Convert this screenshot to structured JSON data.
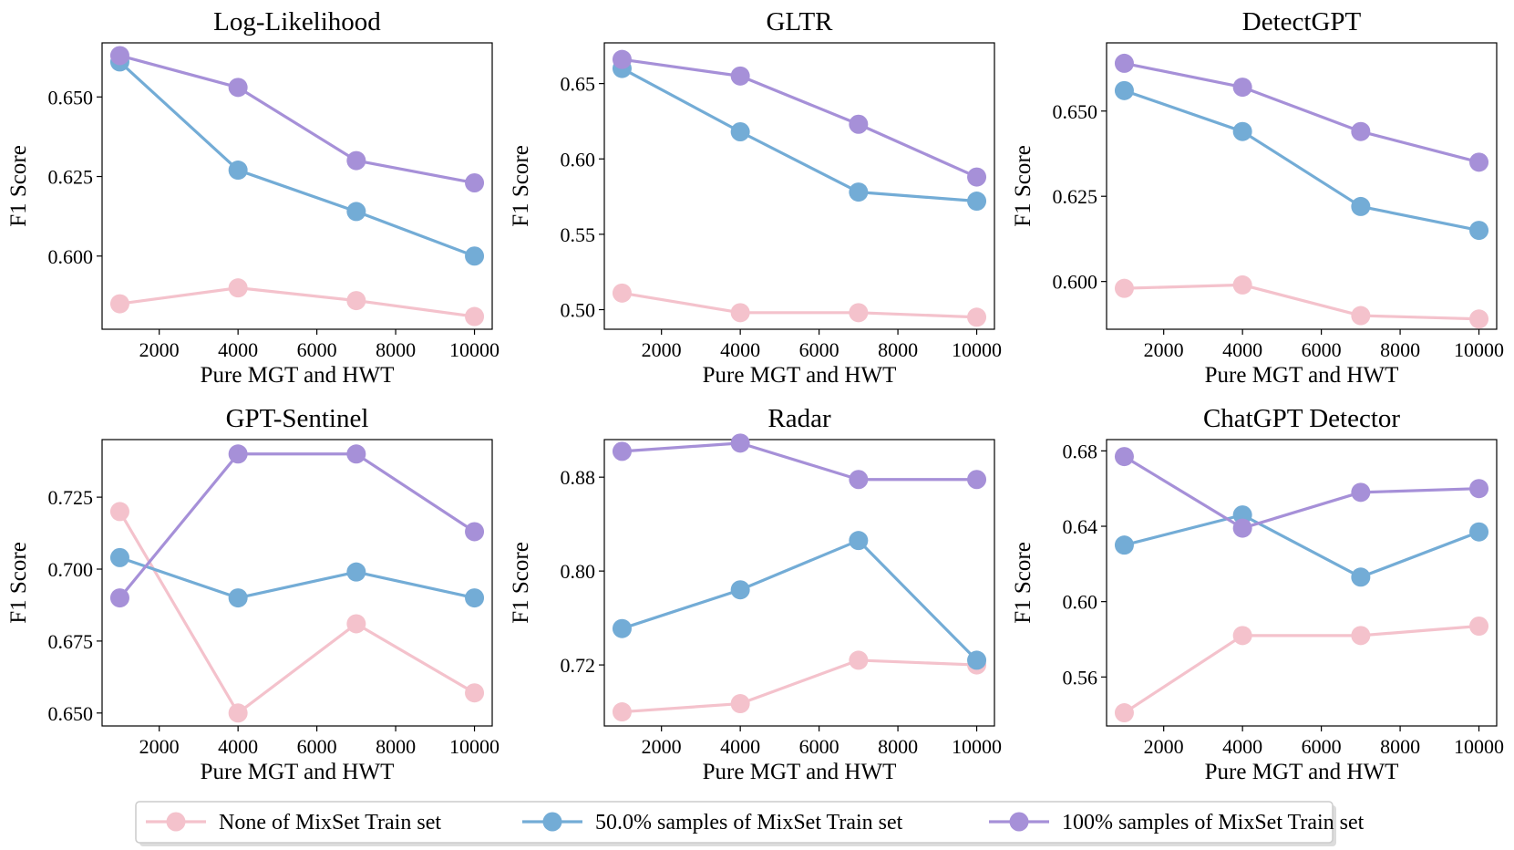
{
  "chart_data": [
    {
      "type": "line",
      "title": "Log-Likelihood",
      "xlabel": "Pure MGT and HWT",
      "ylabel": "F1 Score",
      "x": [
        1000,
        4000,
        7000,
        10000
      ],
      "xticks": [
        2000,
        4000,
        6000,
        8000,
        10000
      ],
      "xlim": [
        550,
        10450
      ],
      "yticks": [
        0.6,
        0.625,
        0.65
      ],
      "ytick_labels": [
        "0.600",
        "0.625",
        "0.650"
      ],
      "ylim": [
        0.577,
        0.667
      ],
      "series": [
        {
          "name": "None of MixSet Train set",
          "values": [
            0.585,
            0.59,
            0.586,
            0.581
          ]
        },
        {
          "name": "50.0% samples of MixSet Train set",
          "values": [
            0.661,
            0.627,
            0.614,
            0.6
          ]
        },
        {
          "name": "100% samples of MixSet Train set",
          "values": [
            0.663,
            0.653,
            0.63,
            0.623
          ]
        }
      ]
    },
    {
      "type": "line",
      "title": "GLTR",
      "xlabel": "Pure MGT and HWT",
      "ylabel": "F1 Score",
      "x": [
        1000,
        4000,
        7000,
        10000
      ],
      "xticks": [
        2000,
        4000,
        6000,
        8000,
        10000
      ],
      "xlim": [
        550,
        10450
      ],
      "yticks": [
        0.5,
        0.55,
        0.6,
        0.65
      ],
      "ytick_labels": [
        "0.50",
        "0.55",
        "0.60",
        "0.65"
      ],
      "ylim": [
        0.487,
        0.677
      ],
      "series": [
        {
          "name": "None of MixSet Train set",
          "values": [
            0.511,
            0.498,
            0.498,
            0.495
          ]
        },
        {
          "name": "50.0% samples of MixSet Train set",
          "values": [
            0.66,
            0.618,
            0.578,
            0.572
          ]
        },
        {
          "name": "100% samples of MixSet Train set",
          "values": [
            0.666,
            0.655,
            0.623,
            0.588
          ]
        }
      ]
    },
    {
      "type": "line",
      "title": "DetectGPT",
      "xlabel": "Pure MGT and HWT",
      "ylabel": "F1 Score",
      "x": [
        1000,
        4000,
        7000,
        10000
      ],
      "xticks": [
        2000,
        4000,
        6000,
        8000,
        10000
      ],
      "xlim": [
        550,
        10450
      ],
      "yticks": [
        0.6,
        0.625,
        0.65
      ],
      "ytick_labels": [
        "0.600",
        "0.625",
        "0.650"
      ],
      "ylim": [
        0.586,
        0.67
      ],
      "series": [
        {
          "name": "None of MixSet Train set",
          "values": [
            0.598,
            0.599,
            0.59,
            0.589
          ]
        },
        {
          "name": "50.0% samples of MixSet Train set",
          "values": [
            0.656,
            0.644,
            0.622,
            0.615
          ]
        },
        {
          "name": "100% samples of MixSet Train set",
          "values": [
            0.664,
            0.657,
            0.644,
            0.635
          ]
        }
      ]
    },
    {
      "type": "line",
      "title": "GPT-Sentinel",
      "xlabel": "Pure MGT and HWT",
      "ylabel": "F1 Score",
      "x": [
        1000,
        4000,
        7000,
        10000
      ],
      "xticks": [
        2000,
        4000,
        6000,
        8000,
        10000
      ],
      "xlim": [
        550,
        10450
      ],
      "yticks": [
        0.65,
        0.675,
        0.7,
        0.725
      ],
      "ytick_labels": [
        "0.650",
        "0.675",
        "0.700",
        "0.725"
      ],
      "ylim": [
        0.6455,
        0.745
      ],
      "series": [
        {
          "name": "None of MixSet Train set",
          "values": [
            0.72,
            0.65,
            0.681,
            0.657
          ]
        },
        {
          "name": "50.0% samples of MixSet Train set",
          "values": [
            0.704,
            0.69,
            0.699,
            0.69
          ]
        },
        {
          "name": "100% samples of MixSet Train set",
          "values": [
            0.69,
            0.74,
            0.74,
            0.713
          ]
        }
      ]
    },
    {
      "type": "line",
      "title": "Radar",
      "xlabel": "Pure MGT and HWT",
      "ylabel": "F1 Score",
      "x": [
        1000,
        4000,
        7000,
        10000
      ],
      "xticks": [
        2000,
        4000,
        6000,
        8000,
        10000
      ],
      "xlim": [
        550,
        10450
      ],
      "yticks": [
        0.72,
        0.8,
        0.88
      ],
      "ytick_labels": [
        "0.72",
        "0.80",
        "0.88"
      ],
      "ylim": [
        0.668,
        0.912
      ],
      "series": [
        {
          "name": "None of MixSet Train set",
          "values": [
            0.68,
            0.687,
            0.724,
            0.72
          ]
        },
        {
          "name": "50.0% samples of MixSet Train set",
          "values": [
            0.751,
            0.784,
            0.826,
            0.724
          ]
        },
        {
          "name": "100% samples of MixSet Train set",
          "values": [
            0.902,
            0.909,
            0.878,
            0.878
          ]
        }
      ]
    },
    {
      "type": "line",
      "title": "ChatGPT Detector",
      "xlabel": "Pure MGT and HWT",
      "ylabel": "F1 Score",
      "x": [
        1000,
        4000,
        7000,
        10000
      ],
      "xticks": [
        2000,
        4000,
        6000,
        8000,
        10000
      ],
      "xlim": [
        550,
        10450
      ],
      "yticks": [
        0.56,
        0.6,
        0.64,
        0.68
      ],
      "ytick_labels": [
        "0.56",
        "0.60",
        "0.64",
        "0.68"
      ],
      "ylim": [
        0.534,
        0.686
      ],
      "series": [
        {
          "name": "None of MixSet Train set",
          "values": [
            0.541,
            0.582,
            0.582,
            0.587
          ]
        },
        {
          "name": "50.0% samples of MixSet Train set",
          "values": [
            0.63,
            0.646,
            0.613,
            0.637
          ]
        },
        {
          "name": "100% samples of MixSet Train set",
          "values": [
            0.677,
            0.639,
            0.658,
            0.66
          ]
        }
      ]
    }
  ],
  "legend": {
    "placement": "bottom-center",
    "entries": [
      "None of MixSet Train set",
      "50.0% samples of MixSet Train set",
      "100% samples of MixSet Train set"
    ]
  },
  "colors": {
    "series": [
      "#f4c2cc",
      "#73acd6",
      "#a690d8"
    ],
    "axis": "#000000",
    "legend_border": "#cccccc"
  }
}
